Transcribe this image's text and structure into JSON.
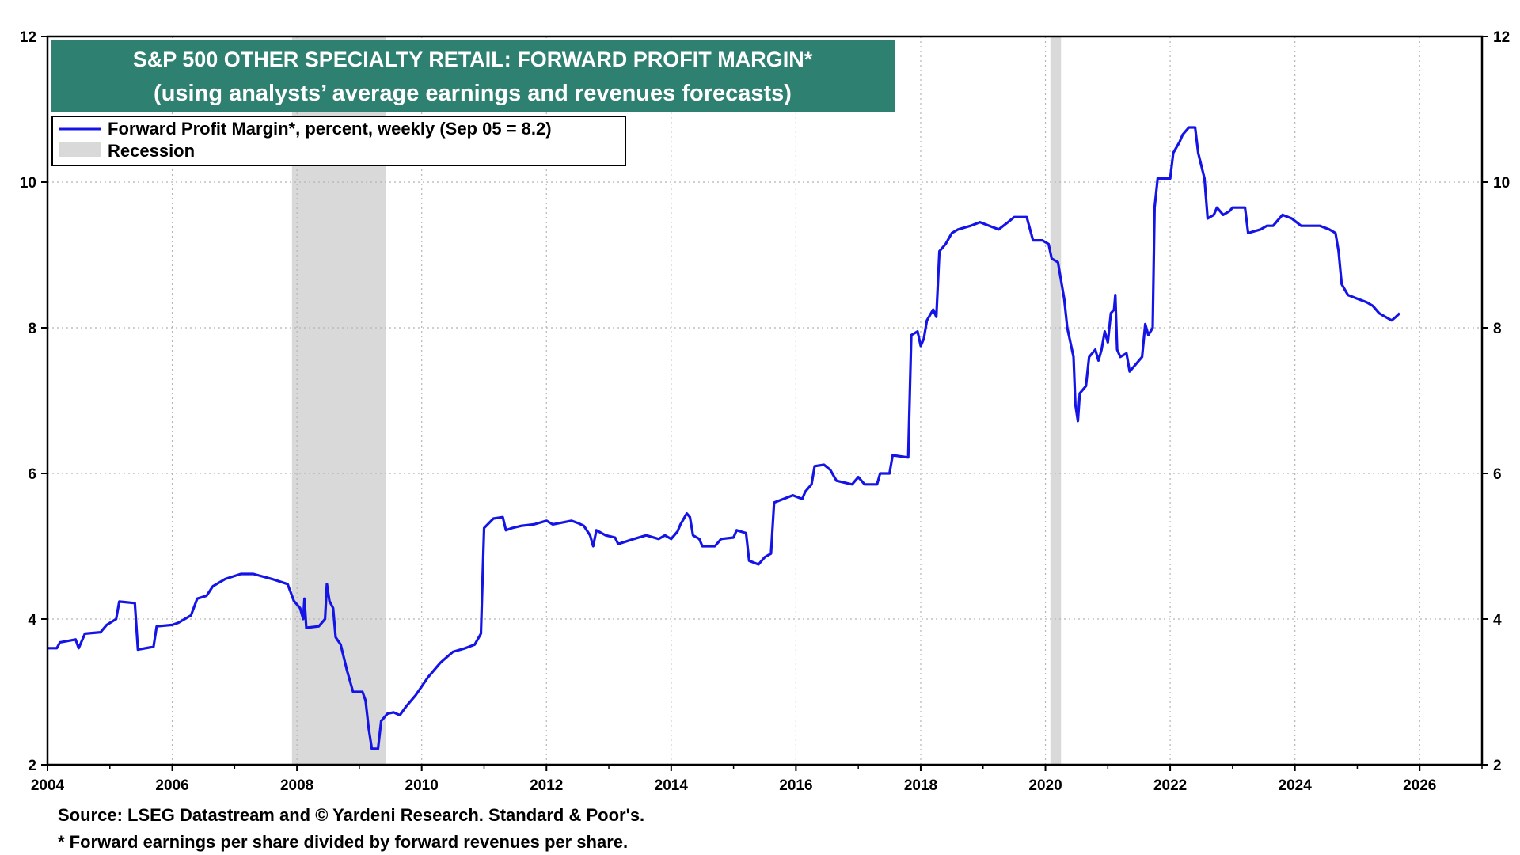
{
  "chart_data": {
    "type": "line",
    "title": "S&P 500 OTHER SPECIALTY RETAIL: FORWARD PROFIT MARGIN*",
    "subtitle": "(using analysts’ average earnings and revenues forecasts)",
    "xlim": [
      2004,
      2027
    ],
    "ylim": [
      2,
      12
    ],
    "x_ticks": [
      2004,
      2006,
      2008,
      2010,
      2012,
      2014,
      2016,
      2018,
      2020,
      2022,
      2024,
      2026
    ],
    "y_ticks": [
      2,
      4,
      6,
      8,
      10,
      12
    ],
    "grid": true,
    "legend_position": "top-left",
    "legend": [
      {
        "label": "Forward Profit Margin*, percent, weekly (Sep 05 = 8.2)",
        "kind": "line",
        "color": "#1414e6"
      },
      {
        "label": "Recession",
        "kind": "shade",
        "color": "#d9d9d9"
      }
    ],
    "recessions": [
      [
        2007.92,
        2009.42
      ],
      [
        2020.08,
        2020.25
      ]
    ],
    "series": [
      {
        "name": "Forward Profit Margin*, percent, weekly (Sep 05 = 8.2)",
        "color": "#1414e6",
        "points": [
          [
            2004.0,
            3.6
          ],
          [
            2004.15,
            3.6
          ],
          [
            2004.2,
            3.68
          ],
          [
            2004.45,
            3.72
          ],
          [
            2004.5,
            3.6
          ],
          [
            2004.6,
            3.8
          ],
          [
            2004.85,
            3.82
          ],
          [
            2004.95,
            3.92
          ],
          [
            2005.1,
            4.0
          ],
          [
            2005.15,
            4.24
          ],
          [
            2005.4,
            4.22
          ],
          [
            2005.45,
            3.58
          ],
          [
            2005.7,
            3.62
          ],
          [
            2005.75,
            3.9
          ],
          [
            2006.0,
            3.92
          ],
          [
            2006.1,
            3.95
          ],
          [
            2006.3,
            4.05
          ],
          [
            2006.4,
            4.28
          ],
          [
            2006.55,
            4.32
          ],
          [
            2006.65,
            4.45
          ],
          [
            2006.85,
            4.55
          ],
          [
            2007.1,
            4.62
          ],
          [
            2007.3,
            4.62
          ],
          [
            2007.6,
            4.55
          ],
          [
            2007.85,
            4.48
          ],
          [
            2007.95,
            4.25
          ],
          [
            2008.05,
            4.15
          ],
          [
            2008.1,
            4.0
          ],
          [
            2008.12,
            4.28
          ],
          [
            2008.15,
            3.88
          ],
          [
            2008.35,
            3.9
          ],
          [
            2008.45,
            4.0
          ],
          [
            2008.48,
            4.48
          ],
          [
            2008.52,
            4.25
          ],
          [
            2008.58,
            4.15
          ],
          [
            2008.62,
            3.75
          ],
          [
            2008.7,
            3.65
          ],
          [
            2008.8,
            3.3
          ],
          [
            2008.9,
            3.0
          ],
          [
            2009.05,
            3.0
          ],
          [
            2009.1,
            2.88
          ],
          [
            2009.15,
            2.5
          ],
          [
            2009.2,
            2.22
          ],
          [
            2009.3,
            2.22
          ],
          [
            2009.35,
            2.6
          ],
          [
            2009.45,
            2.7
          ],
          [
            2009.55,
            2.72
          ],
          [
            2009.65,
            2.68
          ],
          [
            2009.75,
            2.8
          ],
          [
            2009.9,
            2.95
          ],
          [
            2010.1,
            3.2
          ],
          [
            2010.3,
            3.4
          ],
          [
            2010.5,
            3.55
          ],
          [
            2010.7,
            3.6
          ],
          [
            2010.85,
            3.65
          ],
          [
            2010.95,
            3.8
          ],
          [
            2011.0,
            5.25
          ],
          [
            2011.15,
            5.38
          ],
          [
            2011.3,
            5.4
          ],
          [
            2011.35,
            5.22
          ],
          [
            2011.45,
            5.25
          ],
          [
            2011.6,
            5.28
          ],
          [
            2011.8,
            5.3
          ],
          [
            2012.0,
            5.35
          ],
          [
            2012.1,
            5.3
          ],
          [
            2012.4,
            5.35
          ],
          [
            2012.5,
            5.32
          ],
          [
            2012.6,
            5.28
          ],
          [
            2012.7,
            5.15
          ],
          [
            2012.75,
            5.0
          ],
          [
            2012.8,
            5.22
          ],
          [
            2012.95,
            5.15
          ],
          [
            2013.1,
            5.12
          ],
          [
            2013.15,
            5.03
          ],
          [
            2013.4,
            5.1
          ],
          [
            2013.6,
            5.15
          ],
          [
            2013.8,
            5.1
          ],
          [
            2013.9,
            5.15
          ],
          [
            2014.0,
            5.1
          ],
          [
            2014.1,
            5.2
          ],
          [
            2014.15,
            5.3
          ],
          [
            2014.25,
            5.45
          ],
          [
            2014.3,
            5.4
          ],
          [
            2014.35,
            5.15
          ],
          [
            2014.45,
            5.1
          ],
          [
            2014.5,
            5.0
          ],
          [
            2014.7,
            5.0
          ],
          [
            2014.8,
            5.1
          ],
          [
            2015.0,
            5.12
          ],
          [
            2015.05,
            5.22
          ],
          [
            2015.2,
            5.18
          ],
          [
            2015.25,
            4.8
          ],
          [
            2015.4,
            4.75
          ],
          [
            2015.5,
            4.85
          ],
          [
            2015.6,
            4.9
          ],
          [
            2015.65,
            5.6
          ],
          [
            2015.8,
            5.65
          ],
          [
            2015.95,
            5.7
          ],
          [
            2016.1,
            5.65
          ],
          [
            2016.15,
            5.75
          ],
          [
            2016.25,
            5.85
          ],
          [
            2016.3,
            6.1
          ],
          [
            2016.45,
            6.12
          ],
          [
            2016.55,
            6.05
          ],
          [
            2016.65,
            5.9
          ],
          [
            2016.9,
            5.85
          ],
          [
            2017.0,
            5.95
          ],
          [
            2017.1,
            5.85
          ],
          [
            2017.3,
            5.85
          ],
          [
            2017.35,
            6.0
          ],
          [
            2017.5,
            6.0
          ],
          [
            2017.55,
            6.25
          ],
          [
            2017.8,
            6.22
          ],
          [
            2017.85,
            7.9
          ],
          [
            2017.95,
            7.95
          ],
          [
            2018.0,
            7.75
          ],
          [
            2018.05,
            7.85
          ],
          [
            2018.1,
            8.1
          ],
          [
            2018.2,
            8.25
          ],
          [
            2018.25,
            8.15
          ],
          [
            2018.3,
            9.05
          ],
          [
            2018.4,
            9.15
          ],
          [
            2018.5,
            9.3
          ],
          [
            2018.6,
            9.35
          ],
          [
            2018.8,
            9.4
          ],
          [
            2018.95,
            9.45
          ],
          [
            2019.1,
            9.4
          ],
          [
            2019.25,
            9.35
          ],
          [
            2019.4,
            9.45
          ],
          [
            2019.5,
            9.52
          ],
          [
            2019.7,
            9.52
          ],
          [
            2019.8,
            9.2
          ],
          [
            2019.95,
            9.2
          ],
          [
            2020.05,
            9.15
          ],
          [
            2020.1,
            8.95
          ],
          [
            2020.2,
            8.9
          ],
          [
            2020.3,
            8.4
          ],
          [
            2020.35,
            8.0
          ],
          [
            2020.45,
            7.6
          ],
          [
            2020.48,
            6.95
          ],
          [
            2020.52,
            6.72
          ],
          [
            2020.55,
            7.1
          ],
          [
            2020.65,
            7.2
          ],
          [
            2020.7,
            7.6
          ],
          [
            2020.8,
            7.7
          ],
          [
            2020.85,
            7.55
          ],
          [
            2020.9,
            7.7
          ],
          [
            2020.95,
            7.95
          ],
          [
            2021.0,
            7.8
          ],
          [
            2021.05,
            8.2
          ],
          [
            2021.1,
            8.25
          ],
          [
            2021.12,
            8.45
          ],
          [
            2021.15,
            7.7
          ],
          [
            2021.2,
            7.6
          ],
          [
            2021.3,
            7.65
          ],
          [
            2021.35,
            7.4
          ],
          [
            2021.45,
            7.5
          ],
          [
            2021.55,
            7.6
          ],
          [
            2021.6,
            8.05
          ],
          [
            2021.65,
            7.9
          ],
          [
            2021.72,
            8.0
          ],
          [
            2021.75,
            9.65
          ],
          [
            2021.8,
            10.05
          ],
          [
            2022.0,
            10.05
          ],
          [
            2022.05,
            10.4
          ],
          [
            2022.15,
            10.55
          ],
          [
            2022.2,
            10.65
          ],
          [
            2022.3,
            10.75
          ],
          [
            2022.4,
            10.75
          ],
          [
            2022.45,
            10.4
          ],
          [
            2022.55,
            10.05
          ],
          [
            2022.6,
            9.5
          ],
          [
            2022.7,
            9.55
          ],
          [
            2022.75,
            9.65
          ],
          [
            2022.85,
            9.55
          ],
          [
            2022.95,
            9.6
          ],
          [
            2023.0,
            9.65
          ],
          [
            2023.2,
            9.65
          ],
          [
            2023.25,
            9.3
          ],
          [
            2023.45,
            9.35
          ],
          [
            2023.55,
            9.4
          ],
          [
            2023.65,
            9.4
          ],
          [
            2023.8,
            9.55
          ],
          [
            2023.95,
            9.5
          ],
          [
            2024.1,
            9.4
          ],
          [
            2024.3,
            9.4
          ],
          [
            2024.4,
            9.4
          ],
          [
            2024.55,
            9.35
          ],
          [
            2024.65,
            9.3
          ],
          [
            2024.7,
            9.05
          ],
          [
            2024.75,
            8.6
          ],
          [
            2024.85,
            8.45
          ],
          [
            2025.0,
            8.4
          ],
          [
            2025.15,
            8.35
          ],
          [
            2025.25,
            8.3
          ],
          [
            2025.35,
            8.2
          ],
          [
            2025.45,
            8.15
          ],
          [
            2025.55,
            8.1
          ],
          [
            2025.62,
            8.15
          ],
          [
            2025.68,
            8.2
          ]
        ]
      }
    ]
  },
  "notes": {
    "source": "Source: LSEG Datastream and © Yardeni Research. Standard & Poor's.",
    "footnote": "* Forward earnings per share divided by forward revenues per share."
  },
  "colors": {
    "title_background": "#2e8070",
    "line": "#1414e6",
    "recession": "#d9d9d9",
    "grid": "#b5b5b5"
  }
}
